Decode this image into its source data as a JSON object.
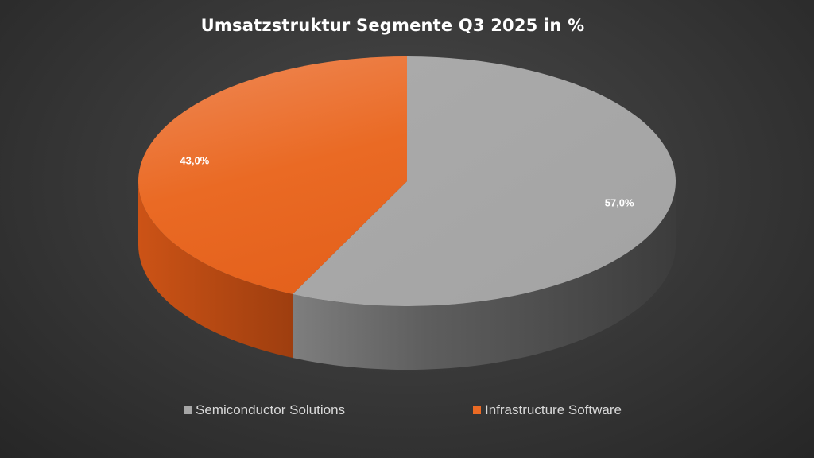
{
  "chart_data": {
    "type": "pie",
    "title": "Umsatzstruktur Segmente Q3 2025 in %",
    "slices": [
      {
        "label": "Semiconductor Solutions",
        "value": 57.0,
        "data_label": "57,0%",
        "color": "#a6a6a6"
      },
      {
        "label": "Infrastructure Software",
        "value": 43.0,
        "data_label": "43,0%",
        "color": "#ea6a24"
      }
    ],
    "legend_position": "bottom",
    "style": "3d"
  }
}
